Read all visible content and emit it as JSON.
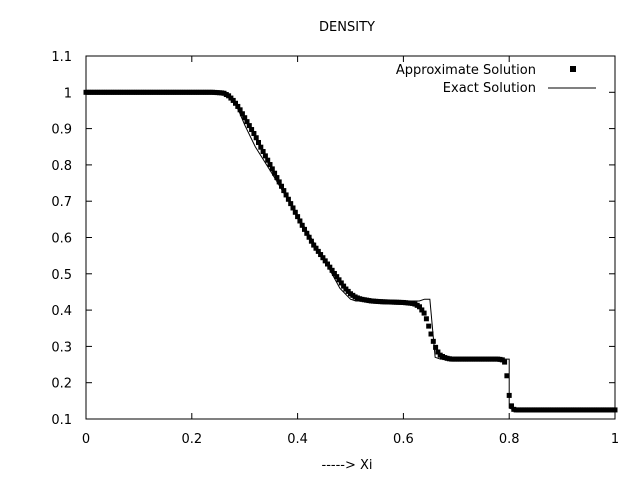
{
  "chart_data": {
    "type": "scatter",
    "title": "DENSITY",
    "xlabel": "-----> Xi",
    "ylabel": "",
    "xlim": [
      0,
      1
    ],
    "ylim": [
      0.1,
      1.1
    ],
    "xticks": [
      "0",
      "0.2",
      "0.4",
      "0.6",
      "0.8",
      "1"
    ],
    "yticks": [
      "0.1",
      "0.2",
      "0.3",
      "0.4",
      "0.5",
      "0.6",
      "0.7",
      "0.8",
      "0.9",
      "1",
      "1.1"
    ],
    "grid": false,
    "legend_position": "top-right",
    "series": [
      {
        "name": "Approximate Solution",
        "kind": "points",
        "marker": "filled-square",
        "color": "#000000",
        "x": [
          0.0,
          0.05,
          0.1,
          0.15,
          0.2,
          0.24,
          0.26,
          0.27,
          0.28,
          0.29,
          0.3,
          0.31,
          0.32,
          0.33,
          0.35,
          0.37,
          0.39,
          0.41,
          0.43,
          0.45,
          0.47,
          0.48,
          0.49,
          0.5,
          0.51,
          0.52,
          0.54,
          0.56,
          0.58,
          0.6,
          0.62,
          0.63,
          0.64,
          0.645,
          0.65,
          0.655,
          0.66,
          0.665,
          0.67,
          0.68,
          0.69,
          0.7,
          0.72,
          0.74,
          0.76,
          0.78,
          0.79,
          0.793,
          0.796,
          0.799,
          0.802,
          0.806,
          0.81,
          0.82,
          0.85,
          0.9,
          0.95,
          1.0
        ],
        "y": [
          1.0,
          1.0,
          1.0,
          1.0,
          1.0,
          1.0,
          0.998,
          0.99,
          0.975,
          0.955,
          0.93,
          0.905,
          0.88,
          0.85,
          0.795,
          0.74,
          0.685,
          0.63,
          0.58,
          0.54,
          0.5,
          0.48,
          0.46,
          0.445,
          0.435,
          0.43,
          0.425,
          0.423,
          0.422,
          0.421,
          0.418,
          0.41,
          0.39,
          0.37,
          0.345,
          0.32,
          0.3,
          0.285,
          0.275,
          0.268,
          0.265,
          0.265,
          0.265,
          0.265,
          0.265,
          0.265,
          0.262,
          0.25,
          0.215,
          0.175,
          0.145,
          0.13,
          0.125,
          0.125,
          0.125,
          0.125,
          0.125,
          0.125
        ]
      },
      {
        "name": "Exact Solution",
        "kind": "line",
        "color": "#000000",
        "x": [
          0.0,
          0.26,
          0.27,
          0.28,
          0.29,
          0.3,
          0.32,
          0.35,
          0.4,
          0.45,
          0.48,
          0.5,
          0.51,
          0.52,
          0.55,
          0.6,
          0.63,
          0.64,
          0.65,
          0.66,
          0.67,
          0.7,
          0.75,
          0.79,
          0.8,
          0.8,
          0.81,
          0.9,
          1.0
        ],
        "y": [
          1.0,
          1.0,
          0.995,
          0.975,
          0.945,
          0.91,
          0.85,
          0.78,
          0.66,
          0.54,
          0.46,
          0.43,
          0.425,
          0.425,
          0.425,
          0.425,
          0.425,
          0.43,
          0.43,
          0.27,
          0.265,
          0.265,
          0.265,
          0.265,
          0.265,
          0.13,
          0.125,
          0.125,
          0.125
        ]
      }
    ]
  }
}
